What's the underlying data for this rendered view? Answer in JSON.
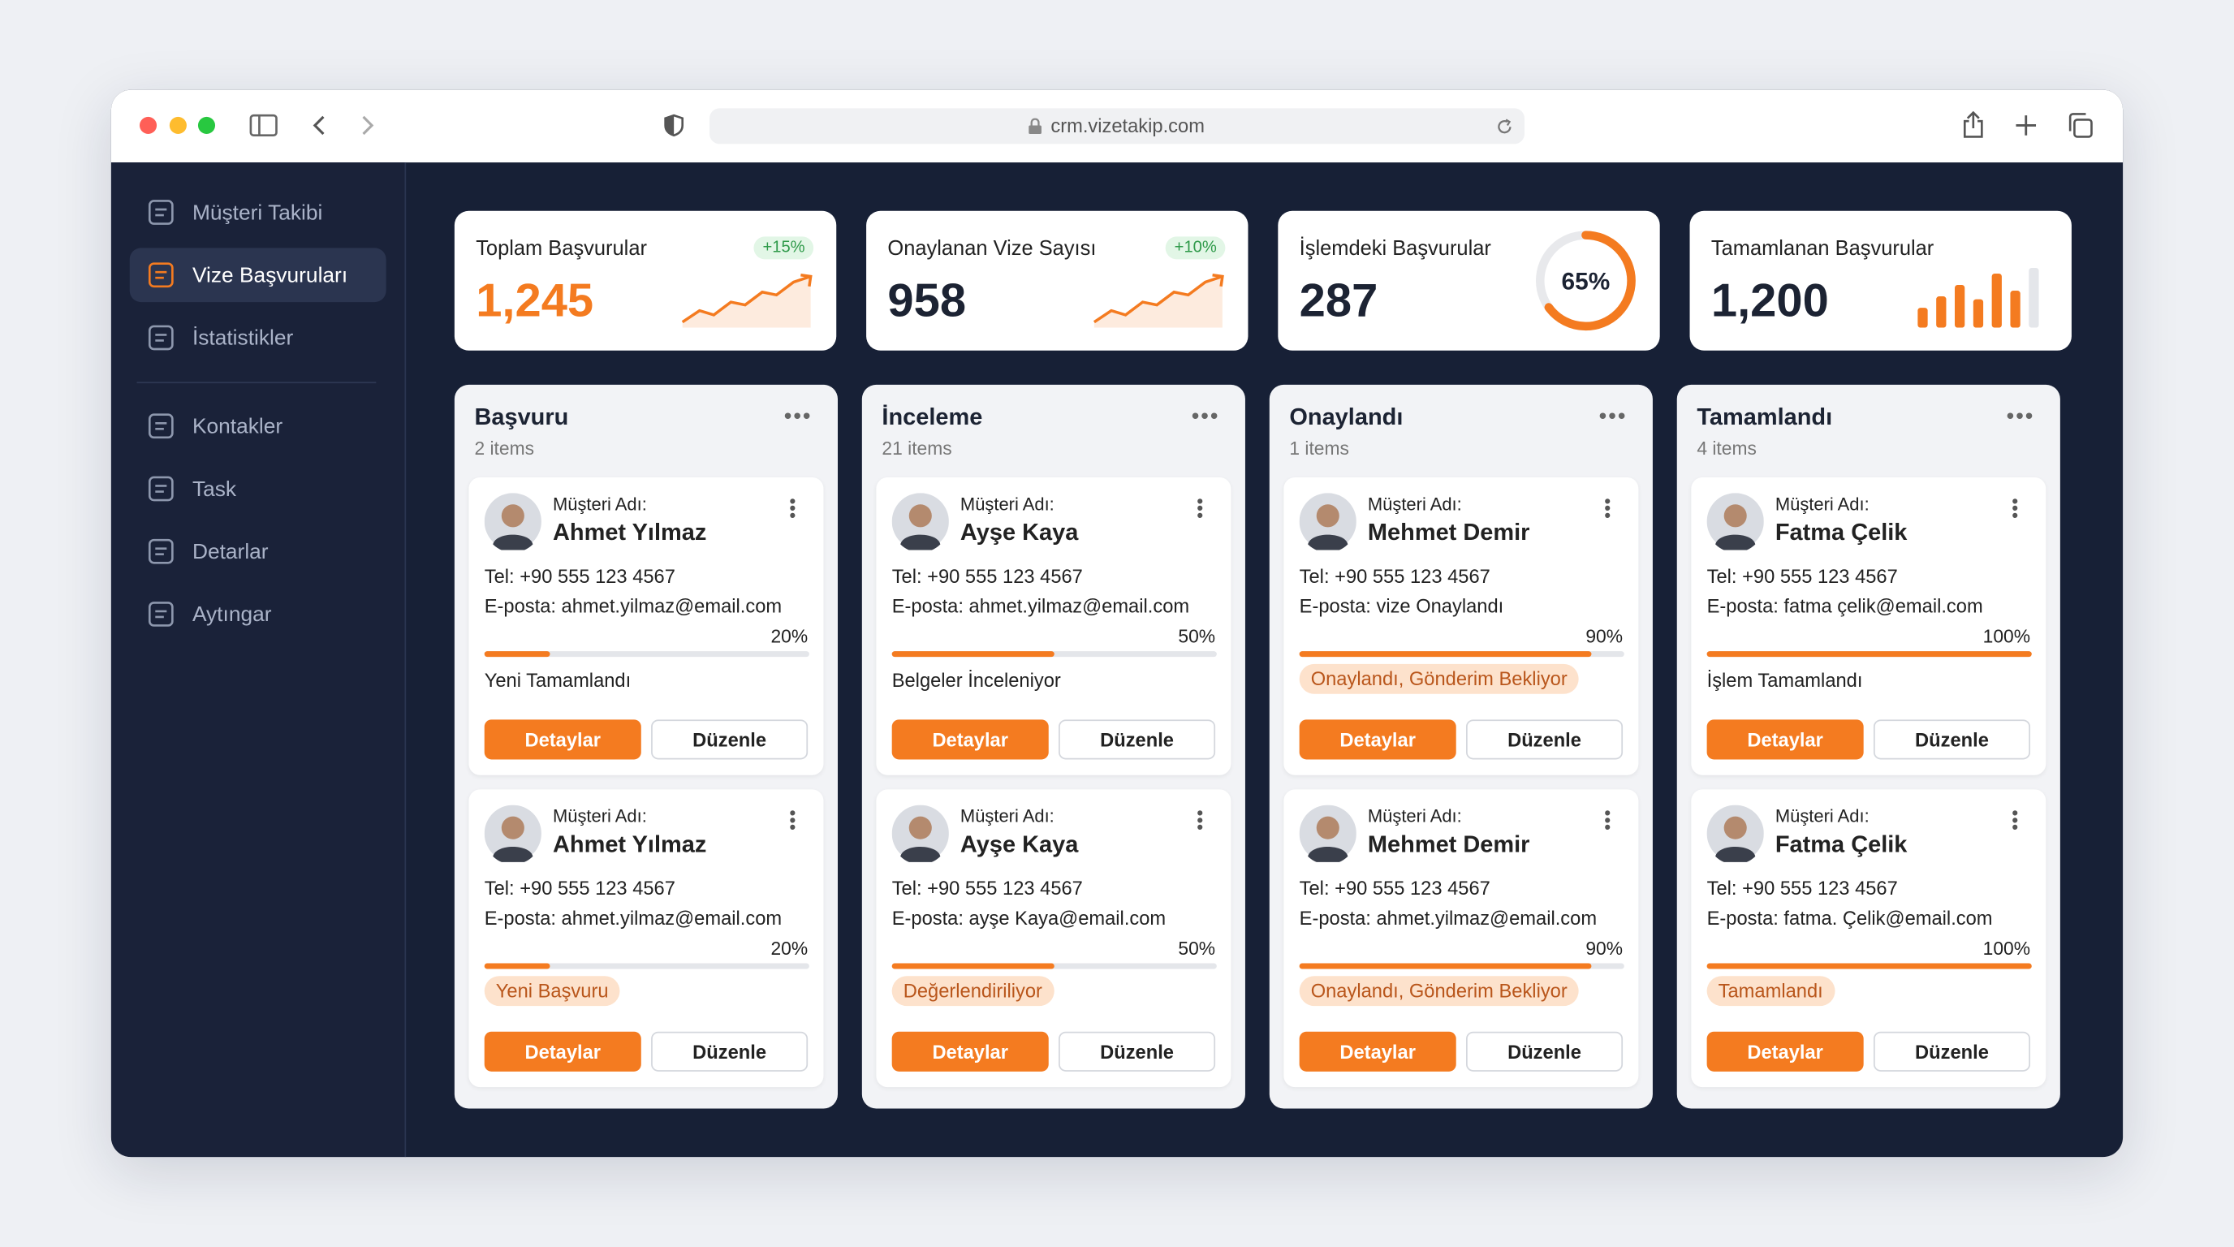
{
  "browser": {
    "url": "crm.vizetakip.com"
  },
  "sidebar": {
    "items": [
      "Müşteri Takibi",
      "Vize Başvuruları",
      "İstatistikler",
      "Kontakler",
      "Task",
      "Detarlar",
      "Aytıngar"
    ],
    "active": 1
  },
  "stats": [
    {
      "title": "Toplam Başvurular",
      "value": "1,245",
      "change": "+15%",
      "graphic": "sparkline",
      "accent": true
    },
    {
      "title": "Onaylanan Vize Sayısı",
      "value": "958",
      "change": "+10%",
      "graphic": "sparkline",
      "accent": false
    },
    {
      "title": "İşlemdeki Başvurular",
      "value": "287",
      "percent": 65,
      "percent_label": "65%",
      "graphic": "donut",
      "accent": false
    },
    {
      "title": "Tamamlanan Başvurular",
      "value": "1,200",
      "graphic": "bars",
      "accent": false
    }
  ],
  "labels": {
    "customer": "Müşteri Adı:",
    "details": "Detaylar",
    "edit": "Düzenle"
  },
  "board": {
    "columns": [
      {
        "title": "Başvuru",
        "count": "2 items",
        "cards": [
          {
            "name": "Ahmet Yılmaz",
            "phone": "Tel: +90 555 123 4567",
            "email": "E-posta: ahmet.yilmaz@email.com",
            "progress": 20,
            "progress_label": "20%",
            "status": "Yeni Tamamlandı",
            "badge": false
          },
          {
            "name": "Ahmet Yılmaz",
            "phone": "Tel: +90 555 123 4567",
            "email": "E-posta: ahmet.yilmaz@email.com",
            "progress": 20,
            "progress_label": "20%",
            "status": "Yeni Başvuru",
            "badge": true
          }
        ]
      },
      {
        "title": "İnceleme",
        "count": "21 items",
        "cards": [
          {
            "name": "Ayşe Kaya",
            "phone": "Tel: +90 555 123 4567",
            "email": "E-posta: ahmet.yilmaz@email.com",
            "progress": 50,
            "progress_label": "50%",
            "status": "Belgeler İnceleniyor",
            "badge": false
          },
          {
            "name": "Ayşe Kaya",
            "phone": "Tel: +90 555 123 4567",
            "email": "E-posta: ayşe Kaya@email.com",
            "progress": 50,
            "progress_label": "50%",
            "status": "Değerlendiriliyor",
            "badge": true
          }
        ]
      },
      {
        "title": "Onaylandı",
        "count": "1 items",
        "cards": [
          {
            "name": "Mehmet Demir",
            "phone": "Tel: +90 555 123 4567",
            "email": "E-posta: vize Onaylandı",
            "progress": 90,
            "progress_label": "90%",
            "status": "Onaylandı, Gönderim Bekliyor",
            "badge": true
          },
          {
            "name": "Mehmet Demir",
            "phone": "Tel: +90 555 123 4567",
            "email": "E-posta: ahmet.yilmaz@email.com",
            "progress": 90,
            "progress_label": "90%",
            "status": "Onaylandı, Gönderim Bekliyor",
            "badge": true
          }
        ]
      },
      {
        "title": "Tamamlandı",
        "count": "4 items",
        "cards": [
          {
            "name": "Fatma Çelik",
            "phone": "Tel: +90 555 123 4567",
            "email": "E-posta: fatma çelik@email.com",
            "progress": 100,
            "progress_label": "100%",
            "status": "İşlem Tamamlandı",
            "badge": false
          },
          {
            "name": "Fatma Çelik",
            "phone": "Tel: +90 555 123 4567",
            "email": "E-posta: fatma. Çelik@email.com",
            "progress": 100,
            "progress_label": "100%",
            "status": "Tamamlandı",
            "badge": true
          }
        ]
      }
    ]
  }
}
